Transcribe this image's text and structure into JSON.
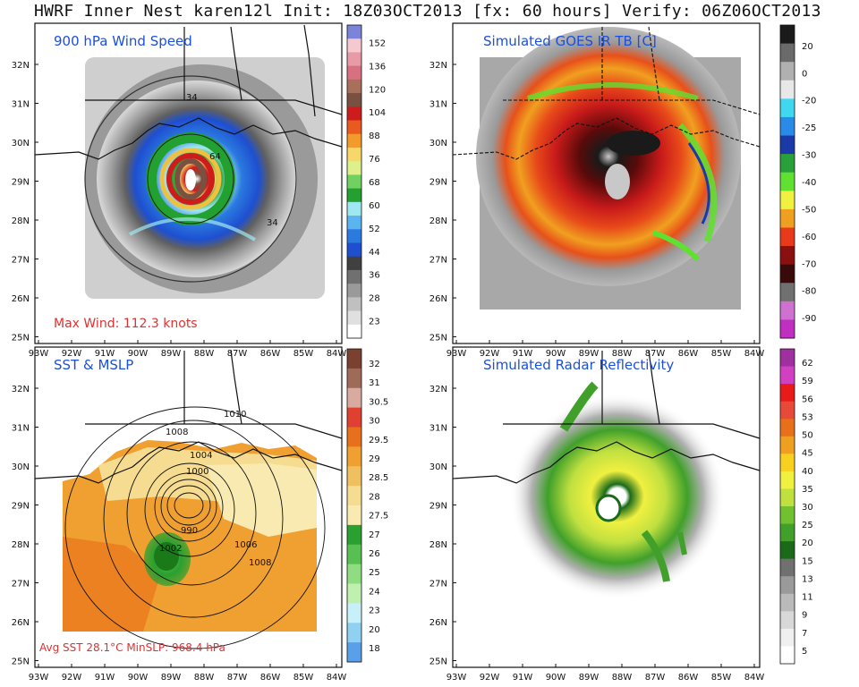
{
  "title": "HWRF Inner Nest karen12l Init: 18Z03OCT2013 [fx: 60 hours] Verify: 06Z06OCT2013",
  "lat_labels": [
    "32N",
    "31N",
    "30N",
    "29N",
    "28N",
    "27N",
    "26N",
    "25N"
  ],
  "lon_labels": [
    "93W",
    "92W",
    "91W",
    "90W",
    "89W",
    "88W",
    "87W",
    "86W",
    "85W",
    "84W"
  ],
  "panels": [
    {
      "id": "wind",
      "title": "900 hPa Wind Speed",
      "title_color": "#1a4fe0",
      "note": "Max Wind: 112.3 knots",
      "note_color": "#e23030",
      "contour_labels": [
        "34",
        "64",
        "34"
      ],
      "colorbar": {
        "labels": [
          "152",
          "136",
          "120",
          "104",
          "88",
          "76",
          "68",
          "60",
          "52",
          "44",
          "36",
          "28",
          "23"
        ],
        "colors": [
          "#7b84d8",
          "#f5c9cf",
          "#e89aa6",
          "#d77080",
          "#a86f5a",
          "#7a5040",
          "#ce1c1c",
          "#ea5a1e",
          "#f39a2a",
          "#f7d66a",
          "#ddf08a",
          "#70d060",
          "#22a030",
          "#a0e8f0",
          "#5ab4f0",
          "#2a7ae0",
          "#1e4fd0",
          "#404040",
          "#707070",
          "#9a9a9a",
          "#c0c0c0",
          "#e0e0e0",
          "#ffffff"
        ]
      }
    },
    {
      "id": "ir",
      "title": "Simulated GOES IR TB [C]",
      "title_color": "#1a4fe0",
      "colorbar": {
        "labels": [
          "20",
          "0",
          "-20",
          "-25",
          "-30",
          "-40",
          "-50",
          "-60",
          "-70",
          "-80",
          "-90"
        ],
        "colors": [
          "#1a1a1a",
          "#6a6a6a",
          "#b0b0b0",
          "#e8e8e8",
          "#40d8f0",
          "#2a8ae8",
          "#1a3aa8",
          "#2aa03a",
          "#60e030",
          "#f0f040",
          "#f0a020",
          "#e83a1a",
          "#8a1010",
          "#3a0a0a",
          "#707070",
          "#d070d0",
          "#c030c0"
        ]
      }
    },
    {
      "id": "sst",
      "title": "SST & MSLP",
      "title_color": "#1a4fe0",
      "note": "Avg SST  28.1°C  MinSLP: 968.4 hPa",
      "note_color": "#e23030",
      "contour_labels": [
        "1010",
        "1008",
        "1004",
        "1000",
        "990",
        "1002",
        "1006",
        "1008"
      ],
      "colorbar": {
        "labels": [
          "32",
          "31",
          "30.5",
          "30",
          "29.5",
          "29",
          "28.5",
          "28",
          "27.5",
          "27",
          "26",
          "25",
          "24",
          "23",
          "20",
          "18"
        ],
        "colors": [
          "#7a4030",
          "#a06a58",
          "#d8aaa0",
          "#e04030",
          "#e8701a",
          "#f0a030",
          "#f0c060",
          "#f6dc90",
          "#f8eab0",
          "#2aa030",
          "#58c050",
          "#90dc80",
          "#c0f0b0",
          "#c8f0f8",
          "#90d0f0",
          "#5aa0e8"
        ]
      }
    },
    {
      "id": "radar",
      "title": "Simulated Radar Reflectivity",
      "title_color": "#1a4fe0",
      "colorbar": {
        "labels": [
          "62",
          "59",
          "56",
          "53",
          "50",
          "45",
          "40",
          "35",
          "30",
          "25",
          "20",
          "15",
          "13",
          "11",
          "9",
          "7",
          "5"
        ],
        "colors": [
          "#a030a0",
          "#d040c0",
          "#e81a1a",
          "#e84a3a",
          "#e8701a",
          "#f0a020",
          "#f8d020",
          "#f0f040",
          "#c0e040",
          "#70c030",
          "#40a02a",
          "#1a6a1a",
          "#707070",
          "#9a9a9a",
          "#bababa",
          "#d8d8d8",
          "#f0f0f0",
          "#ffffff"
        ]
      }
    }
  ]
}
